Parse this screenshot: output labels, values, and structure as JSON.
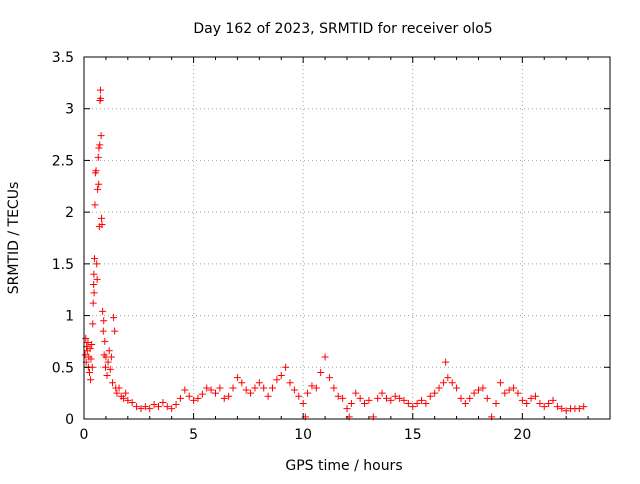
{
  "chart_data": {
    "type": "scatter",
    "title": "Day 162 of 2023, SRMTID for receiver olo5",
    "xlabel": "GPS time / hours",
    "ylabel": "SRMTID / TECUs",
    "xlim": [
      0,
      24
    ],
    "ylim": [
      0,
      3.5
    ],
    "xticks": [
      0,
      5,
      10,
      15,
      20
    ],
    "xtick_labels": [
      "0",
      "5",
      "10",
      "15",
      "20"
    ],
    "yticks": [
      0,
      0.5,
      1,
      1.5,
      2,
      2.5,
      3,
      3.5
    ],
    "ytick_labels": [
      "0",
      "0.5",
      "1",
      "1.5",
      "2",
      "2.5",
      "3",
      "3.5"
    ],
    "grid": true,
    "marker": "plus",
    "color": "#ff0000",
    "series": [
      {
        "name": "olo5",
        "points": [
          [
            0.05,
            0.62
          ],
          [
            0.08,
            0.78
          ],
          [
            0.1,
            0.55
          ],
          [
            0.12,
            0.7
          ],
          [
            0.15,
            0.66
          ],
          [
            0.18,
            0.74
          ],
          [
            0.2,
            0.5
          ],
          [
            0.22,
            0.6
          ],
          [
            0.25,
            0.45
          ],
          [
            0.28,
            0.68
          ],
          [
            0.3,
            0.38
          ],
          [
            0.32,
            0.58
          ],
          [
            0.35,
            0.72
          ],
          [
            0.38,
            0.5
          ],
          [
            0.4,
            0.92
          ],
          [
            0.42,
            1.12
          ],
          [
            0.44,
            1.3
          ],
          [
            0.45,
            1.4
          ],
          [
            0.46,
            1.22
          ],
          [
            0.48,
            1.55
          ],
          [
            0.5,
            2.07
          ],
          [
            0.52,
            2.38
          ],
          [
            0.55,
            2.4
          ],
          [
            0.58,
            1.5
          ],
          [
            0.6,
            1.35
          ],
          [
            0.62,
            2.22
          ],
          [
            0.65,
            2.53
          ],
          [
            0.67,
            2.27
          ],
          [
            0.68,
            2.62
          ],
          [
            0.7,
            1.86
          ],
          [
            0.72,
            2.65
          ],
          [
            0.73,
            3.08
          ],
          [
            0.75,
            3.18
          ],
          [
            0.76,
            3.1
          ],
          [
            0.78,
            2.74
          ],
          [
            0.8,
            1.94
          ],
          [
            0.82,
            1.88
          ],
          [
            0.85,
            1.04
          ],
          [
            0.88,
            0.85
          ],
          [
            0.9,
            0.95
          ],
          [
            0.92,
            0.62
          ],
          [
            0.95,
            0.75
          ],
          [
            0.98,
            0.5
          ],
          [
            1.0,
            0.6
          ],
          [
            1.05,
            0.42
          ],
          [
            1.1,
            0.55
          ],
          [
            1.15,
            0.66
          ],
          [
            1.2,
            0.48
          ],
          [
            1.25,
            0.6
          ],
          [
            1.3,
            0.35
          ],
          [
            1.35,
            0.98
          ],
          [
            1.4,
            0.85
          ],
          [
            1.45,
            0.3
          ],
          [
            1.5,
            0.25
          ],
          [
            1.6,
            0.3
          ],
          [
            1.7,
            0.22
          ],
          [
            1.8,
            0.2
          ],
          [
            1.9,
            0.25
          ],
          [
            2.0,
            0.18
          ],
          [
            2.2,
            0.16
          ],
          [
            2.4,
            0.12
          ],
          [
            2.6,
            0.1
          ],
          [
            2.8,
            0.12
          ],
          [
            3.0,
            0.1
          ],
          [
            3.2,
            0.14
          ],
          [
            3.4,
            0.12
          ],
          [
            3.6,
            0.16
          ],
          [
            3.8,
            0.12
          ],
          [
            4.0,
            0.1
          ],
          [
            4.2,
            0.14
          ],
          [
            4.4,
            0.2
          ],
          [
            4.6,
            0.28
          ],
          [
            4.8,
            0.22
          ],
          [
            5.0,
            0.18
          ],
          [
            5.2,
            0.2
          ],
          [
            5.4,
            0.24
          ],
          [
            5.6,
            0.3
          ],
          [
            5.8,
            0.28
          ],
          [
            6.0,
            0.25
          ],
          [
            6.2,
            0.3
          ],
          [
            6.4,
            0.2
          ],
          [
            6.6,
            0.22
          ],
          [
            6.8,
            0.3
          ],
          [
            7.0,
            0.4
          ],
          [
            7.2,
            0.35
          ],
          [
            7.4,
            0.28
          ],
          [
            7.6,
            0.25
          ],
          [
            7.8,
            0.3
          ],
          [
            8.0,
            0.35
          ],
          [
            8.2,
            0.3
          ],
          [
            8.4,
            0.22
          ],
          [
            8.6,
            0.3
          ],
          [
            8.8,
            0.38
          ],
          [
            9.0,
            0.42
          ],
          [
            9.2,
            0.5
          ],
          [
            9.4,
            0.35
          ],
          [
            9.6,
            0.28
          ],
          [
            9.8,
            0.22
          ],
          [
            10.0,
            0.15
          ],
          [
            10.1,
            0.02
          ],
          [
            10.2,
            0.25
          ],
          [
            10.4,
            0.32
          ],
          [
            10.6,
            0.3
          ],
          [
            10.8,
            0.45
          ],
          [
            11.0,
            0.6
          ],
          [
            11.2,
            0.4
          ],
          [
            11.4,
            0.3
          ],
          [
            11.6,
            0.22
          ],
          [
            11.8,
            0.2
          ],
          [
            12.0,
            0.1
          ],
          [
            12.1,
            0.02
          ],
          [
            12.2,
            0.15
          ],
          [
            12.4,
            0.25
          ],
          [
            12.6,
            0.2
          ],
          [
            12.8,
            0.15
          ],
          [
            13.0,
            0.18
          ],
          [
            13.2,
            0.02
          ],
          [
            13.4,
            0.2
          ],
          [
            13.6,
            0.25
          ],
          [
            13.8,
            0.2
          ],
          [
            14.0,
            0.18
          ],
          [
            14.2,
            0.22
          ],
          [
            14.4,
            0.2
          ],
          [
            14.6,
            0.18
          ],
          [
            14.8,
            0.15
          ],
          [
            15.0,
            0.12
          ],
          [
            15.2,
            0.15
          ],
          [
            15.4,
            0.18
          ],
          [
            15.6,
            0.15
          ],
          [
            15.8,
            0.22
          ],
          [
            16.0,
            0.25
          ],
          [
            16.2,
            0.3
          ],
          [
            16.4,
            0.35
          ],
          [
            16.5,
            0.55
          ],
          [
            16.6,
            0.4
          ],
          [
            16.8,
            0.35
          ],
          [
            17.0,
            0.3
          ],
          [
            17.2,
            0.2
          ],
          [
            17.4,
            0.15
          ],
          [
            17.6,
            0.2
          ],
          [
            17.8,
            0.25
          ],
          [
            18.0,
            0.28
          ],
          [
            18.2,
            0.3
          ],
          [
            18.4,
            0.2
          ],
          [
            18.6,
            0.02
          ],
          [
            18.8,
            0.15
          ],
          [
            19.0,
            0.35
          ],
          [
            19.2,
            0.25
          ],
          [
            19.4,
            0.28
          ],
          [
            19.6,
            0.3
          ],
          [
            19.8,
            0.25
          ],
          [
            20.0,
            0.18
          ],
          [
            20.2,
            0.15
          ],
          [
            20.4,
            0.2
          ],
          [
            20.6,
            0.22
          ],
          [
            20.8,
            0.15
          ],
          [
            21.0,
            0.12
          ],
          [
            21.2,
            0.15
          ],
          [
            21.4,
            0.18
          ],
          [
            21.6,
            0.12
          ],
          [
            21.8,
            0.1
          ],
          [
            22.0,
            0.08
          ],
          [
            22.2,
            0.1
          ],
          [
            22.4,
            0.1
          ],
          [
            22.6,
            0.1
          ],
          [
            22.8,
            0.12
          ]
        ]
      }
    ]
  }
}
